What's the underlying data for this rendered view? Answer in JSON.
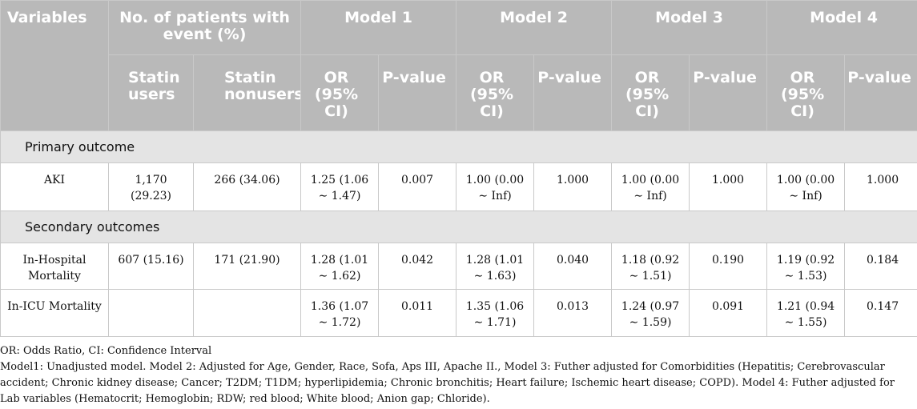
{
  "header": {
    "variables": "Variables",
    "patients_group": "No. of patients with event (%)",
    "models": [
      "Model 1",
      "Model 2",
      "Model 3",
      "Model 4"
    ],
    "statin_users": "Statin users",
    "statin_nonusers": "Statin nonusers",
    "or": "OR (95% CI)",
    "pvalue": "P-value"
  },
  "sections": {
    "primary": "Primary outcome",
    "secondary": "Secondary outcomes"
  },
  "rows": {
    "aki": {
      "label": "AKI",
      "users": "1,170 (29.23)",
      "nonusers": "266 (34.06)",
      "m1_or": "1.25 (1.06 ∼ 1.47)",
      "m1_p": "0.007",
      "m2_or": "1.00 (0.00 ∼ Inf)",
      "m2_p": "1.000",
      "m3_or": "1.00 (0.00 ∼ Inf)",
      "m3_p": "1.000",
      "m4_or": "1.00 (0.00 ∼ Inf)",
      "m4_p": "1.000"
    },
    "hosp": {
      "label": "In-Hospital Mortality",
      "users": "607 (15.16)",
      "nonusers": "171 (21.90)",
      "m1_or": "1.28 (1.01 ∼ 1.62)",
      "m1_p": "0.042",
      "m2_or": "1.28 (1.01 ∼ 1.63)",
      "m2_p": "0.040",
      "m3_or": "1.18 (0.92 ∼ 1.51)",
      "m3_p": "0.190",
      "m4_or": "1.19 (0.92 ∼ 1.53)",
      "m4_p": "0.184"
    },
    "icu": {
      "label": "In-ICU Mortality",
      "users": "",
      "nonusers": "",
      "m1_or": "1.36 (1.07 ∼ 1.72)",
      "m1_p": "0.011",
      "m2_or": "1.35 (1.06 ∼ 1.71)",
      "m2_p": "0.013",
      "m3_or": "1.24 (0.97 ∼ 1.59)",
      "m3_p": "0.091",
      "m4_or": "1.21 (0.94 ∼ 1.55)",
      "m4_p": "0.147"
    }
  },
  "notes": {
    "abbrev": "OR: Odds Ratio, CI: Confidence Interval",
    "models": "Model1: Unadjusted model. Model 2: Adjusted for Age, Gender, Race, Sofa, Aps III, Apache II., Model 3: Futher adjusted for Comorbidities (Hepatitis; Cerebrovascular accident; Chronic kidney disease; Cancer; T2DM; T1DM; hyperlipidemia; Chronic bronchitis; Heart failure; Ischemic heart disease; COPD). Model 4: Futher adjusted for Lab variables (Hematocrit; Hemoglobin; RDW; red blood; White blood; Anion gap; Chloride)."
  }
}
